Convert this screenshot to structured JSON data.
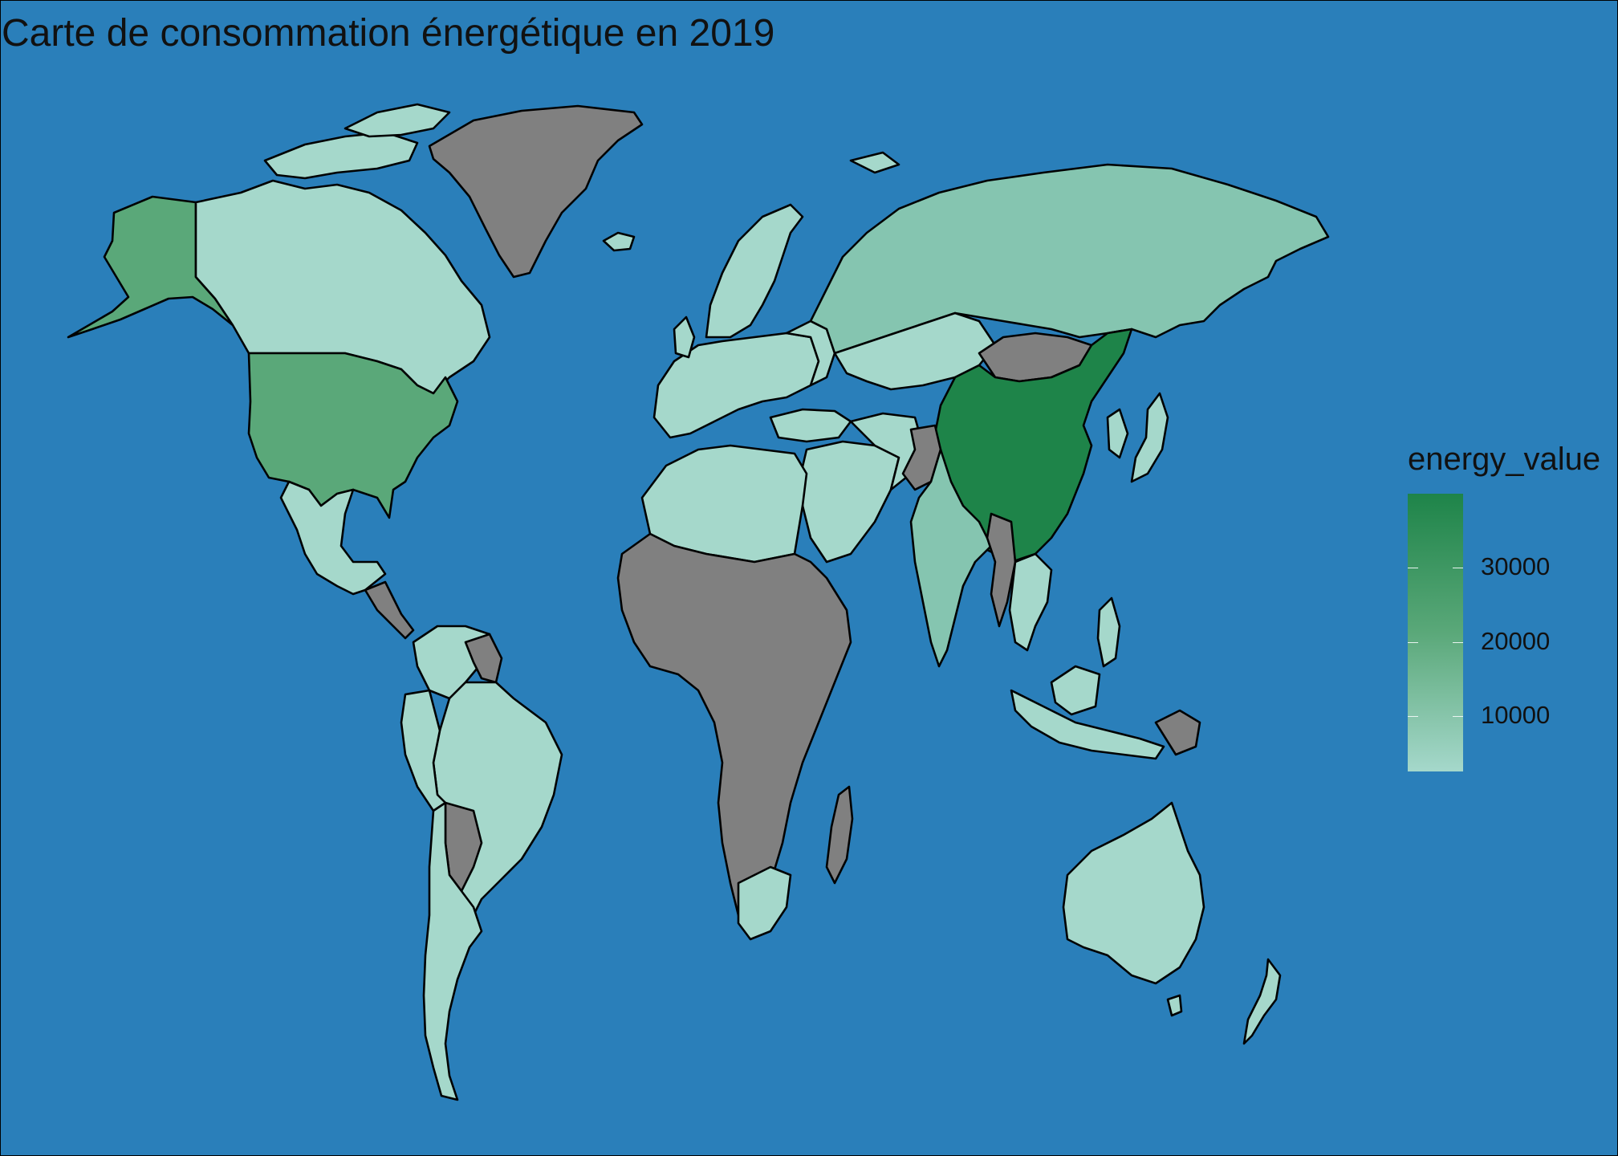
{
  "title": "Carte de consommation énergétique en 2019",
  "legend": {
    "title": "energy_value",
    "ticks": [
      "30000",
      "20000",
      "10000"
    ],
    "tick_values": [
      30000,
      20000,
      10000
    ],
    "min_value": 2500,
    "max_value": 40000,
    "low_color": "#a5d8cb",
    "high_color": "#1e8449",
    "na_color": "#808080"
  },
  "colors": {
    "ocean": "#2a7fba",
    "no_data": "#808080",
    "border": "#000000"
  },
  "map_data": {
    "type": "choropleth",
    "variable": "energy_value",
    "year": "2019",
    "regions": [
      {
        "name": "China",
        "value": 38000
      },
      {
        "name": "United States",
        "value": 25000
      },
      {
        "name": "Russia",
        "value": 9000
      },
      {
        "name": "India",
        "value": 10000
      },
      {
        "name": "Canada",
        "value": 4000
      },
      {
        "name": "Brazil",
        "value": 3500
      },
      {
        "name": "Australia",
        "value": 2500
      },
      {
        "name": "Africa (most countries)",
        "value": null
      },
      {
        "name": "Greenland",
        "value": null
      },
      {
        "name": "Mongolia",
        "value": null
      }
    ]
  }
}
